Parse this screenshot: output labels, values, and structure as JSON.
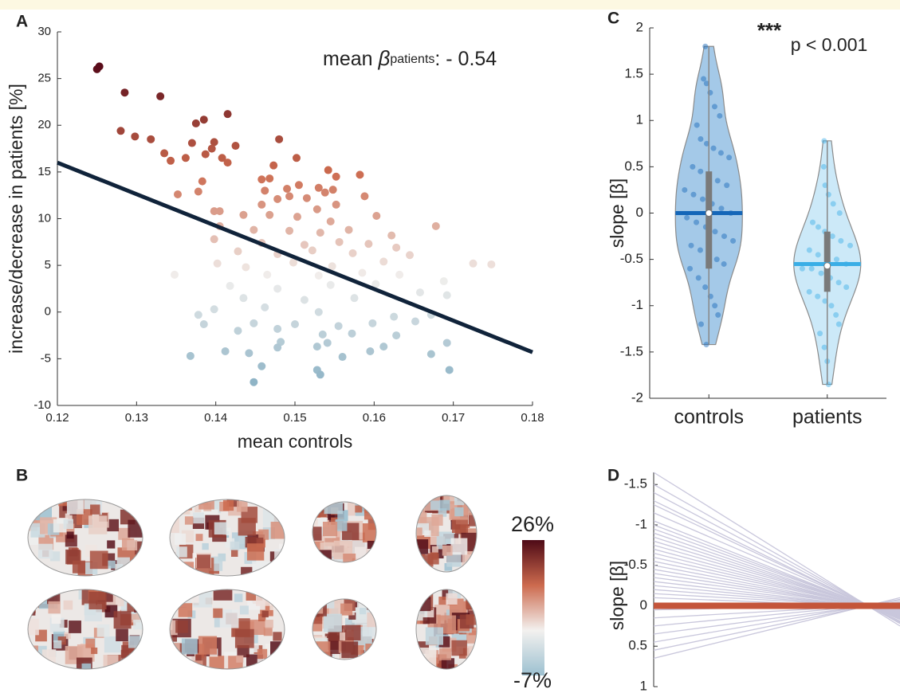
{
  "chart_data": [
    {
      "type": "scatter",
      "panel": "A",
      "xlabel": "mean controls",
      "ylabel": "increase/decrease in patients [%]",
      "annotation": [
        "mean ",
        "β",
        "patients",
        ": - 0.54"
      ],
      "xlim": [
        0.12,
        0.18
      ],
      "xticks": [
        0.12,
        0.13,
        0.14,
        0.15,
        0.16,
        0.17,
        0.18
      ],
      "ylim": [
        -10,
        30
      ],
      "yticks": [
        -10,
        -5,
        0,
        5,
        10,
        15,
        20,
        25,
        30
      ],
      "colormap": [
        "#8fb4c6",
        "#f1efed",
        "#cc6a4e",
        "#5a0c1a"
      ],
      "x": [
        0.125,
        0.1253,
        0.1285,
        0.133,
        0.1415,
        0.1385,
        0.1375,
        0.128,
        0.1298,
        0.1318,
        0.148,
        0.137,
        0.1398,
        0.1425,
        0.1395,
        0.1335,
        0.1387,
        0.1362,
        0.1343,
        0.1408,
        0.1502,
        0.1415,
        0.1473,
        0.1542,
        0.1468,
        0.1383,
        0.1458,
        0.1552,
        0.1582,
        0.1378,
        0.149,
        0.1505,
        0.153,
        0.1548,
        0.1462,
        0.1352,
        0.1478,
        0.1493,
        0.1515,
        0.1538,
        0.1588,
        0.1458,
        0.1528,
        0.1552,
        0.1398,
        0.1405,
        0.1435,
        0.1468,
        0.1503,
        0.1545,
        0.1603,
        0.1678,
        0.1405,
        0.1448,
        0.1493,
        0.1532,
        0.1568,
        0.1622,
        0.1398,
        0.1458,
        0.1512,
        0.1556,
        0.1593,
        0.1628,
        0.1428,
        0.1478,
        0.1522,
        0.1573,
        0.1645,
        0.1725,
        0.1748,
        0.1402,
        0.1438,
        0.1498,
        0.1547,
        0.1612,
        0.1348,
        0.1465,
        0.153,
        0.1585,
        0.1632,
        0.1688,
        0.1418,
        0.1478,
        0.1545,
        0.1602,
        0.1658,
        0.1692,
        0.1435,
        0.1512,
        0.1575,
        0.1398,
        0.1462,
        0.153,
        0.1625,
        0.1672,
        0.1378,
        0.1385,
        0.1448,
        0.15,
        0.1555,
        0.1598,
        0.1652,
        0.1428,
        0.1478,
        0.1535,
        0.1572,
        0.1628,
        0.1482,
        0.1541,
        0.1612,
        0.1692,
        0.1368,
        0.1412,
        0.1442,
        0.1478,
        0.1528,
        0.156,
        0.1595,
        0.1672,
        0.1458,
        0.1528,
        0.1532,
        0.1695,
        0.1448
      ],
      "y": [
        26,
        26.3,
        23.5,
        23.1,
        21.2,
        20.6,
        20.2,
        19.4,
        18.8,
        18.5,
        18.5,
        18.1,
        18.2,
        17.8,
        17.5,
        17,
        16.9,
        16.5,
        16.2,
        16.5,
        16.5,
        16,
        15.7,
        15.2,
        14.3,
        14,
        14.2,
        14.5,
        14.7,
        12.9,
        13.2,
        13.6,
        13.3,
        13.1,
        13,
        12.6,
        12.1,
        12.4,
        12.2,
        12.8,
        12.4,
        11.5,
        11,
        11.5,
        10.8,
        10.8,
        10.4,
        10.4,
        10.2,
        9.7,
        10.3,
        9.2,
        9.2,
        8.8,
        8.7,
        8.5,
        8.8,
        8.2,
        7.8,
        7.4,
        7.2,
        7.5,
        7.3,
        6.9,
        6.5,
        6.2,
        6.6,
        6.3,
        6.1,
        5.2,
        5.1,
        5.2,
        4.8,
        5.3,
        4.9,
        5.4,
        4,
        4,
        3.9,
        4.2,
        4,
        3.3,
        2.8,
        2.5,
        2.9,
        3,
        2.1,
        1.8,
        1.5,
        1.3,
        1.5,
        0.3,
        0.5,
        0,
        -0.5,
        -0.3,
        -0.3,
        -1.3,
        -1.2,
        -1.3,
        -1.5,
        -1.2,
        -1,
        -2,
        -1.8,
        -2.4,
        -2.3,
        -2.5,
        -3.2,
        -3.3,
        -3.7,
        -3.3,
        -4.7,
        -4.2,
        -4.4,
        -3.8,
        -3.7,
        -4.8,
        -4.2,
        -4.5,
        -5.8,
        -6.2,
        -6.7,
        -6.2,
        -7.5
      ],
      "fit": {
        "x": [
          0.12,
          0.18
        ],
        "y": [
          16,
          -4.3
        ],
        "color": "#10233a"
      }
    },
    {
      "type": "brainmap",
      "panel": "B",
      "colorbar": {
        "values": [
          -7,
          26
        ],
        "value_labels": [
          "-7%",
          "26%"
        ],
        "colors": [
          "#9cc0d0",
          "#f3f1ef",
          "#cc6a4e",
          "#4e0a16"
        ]
      }
    },
    {
      "type": "violin",
      "panel": "C",
      "ylabel": "slope  [β]",
      "annotations": [
        "***",
        "p < 0.001"
      ],
      "categories": [
        "controls",
        "patients"
      ],
      "ylim": [
        -2,
        2
      ],
      "yticks": [
        -2,
        -1.5,
        -1,
        -0.5,
        0,
        0.5,
        1,
        1.5,
        2
      ],
      "groups": [
        {
          "color": "#1466b8",
          "fill": "#8dbbe2",
          "mean": 0,
          "median": 0,
          "q1": -0.6,
          "q3": 0.45,
          "points": [
            1.8,
            1.45,
            1.4,
            1.3,
            1.15,
            1.05,
            0.95,
            0.8,
            0.75,
            0.7,
            0.65,
            0.6,
            0.5,
            0.45,
            0.4,
            0.35,
            0.3,
            0.25,
            0.2,
            0.15,
            0.1,
            0.05,
            0,
            -0.05,
            -0.1,
            -0.15,
            -0.2,
            -0.25,
            -0.3,
            -0.35,
            -0.4,
            -0.45,
            -0.5,
            -0.55,
            -0.6,
            -0.7,
            -0.8,
            -0.9,
            -1,
            -1.1,
            -1.2,
            -1.42
          ]
        },
        {
          "color": "#3aaee6",
          "fill": "#bfe3f6",
          "mean": -0.55,
          "median": -0.57,
          "q1": -0.85,
          "q3": -0.2,
          "points": [
            0.78,
            0.5,
            0.3,
            0.2,
            0.1,
            0,
            -0.1,
            -0.15,
            -0.2,
            -0.25,
            -0.3,
            -0.35,
            -0.4,
            -0.45,
            -0.5,
            -0.5,
            -0.55,
            -0.6,
            -0.6,
            -0.65,
            -0.7,
            -0.75,
            -0.8,
            -0.85,
            -0.9,
            -0.95,
            -1,
            -1.1,
            -1.2,
            -1.3,
            -1.45,
            -1.6,
            -1.85
          ]
        }
      ]
    },
    {
      "type": "slopegraph",
      "panel": "D",
      "ylabel": "slope  [β]",
      "reverse_y": true,
      "ylim": [
        -1.65,
        1
      ],
      "yticks": [
        -1.5,
        -1,
        -0.5,
        0,
        0.5,
        1
      ],
      "line_color": "#c9c7dc",
      "start": [
        -1.65,
        -1.5,
        -1.4,
        -1.3,
        -1.25,
        -1.15,
        -1.05,
        -1,
        -0.95,
        -0.9,
        -0.85,
        -0.8,
        -0.75,
        -0.7,
        -0.65,
        -0.6,
        -0.55,
        -0.5,
        -0.45,
        -0.4,
        -0.35,
        -0.3,
        -0.25,
        -0.2,
        -0.15,
        -0.1,
        0.05,
        0.15,
        0.25,
        0.35,
        0.45,
        0.55,
        0.65
      ],
      "end": [
        0.25,
        0.22,
        0.21,
        0.2,
        0.19,
        0.17,
        0.16,
        0.15,
        0.14,
        0.14,
        0.13,
        0.12,
        0.11,
        0.11,
        0.1,
        0.09,
        0.08,
        0.08,
        0.07,
        0.06,
        0.05,
        0.05,
        0.04,
        0.03,
        0.02,
        0.02,
        -0.01,
        -0.02,
        -0.04,
        -0.05,
        -0.07,
        -0.08,
        -0.1
      ],
      "mean_line": {
        "values": [
          0,
          0
        ],
        "color": "#c4553a"
      }
    }
  ]
}
